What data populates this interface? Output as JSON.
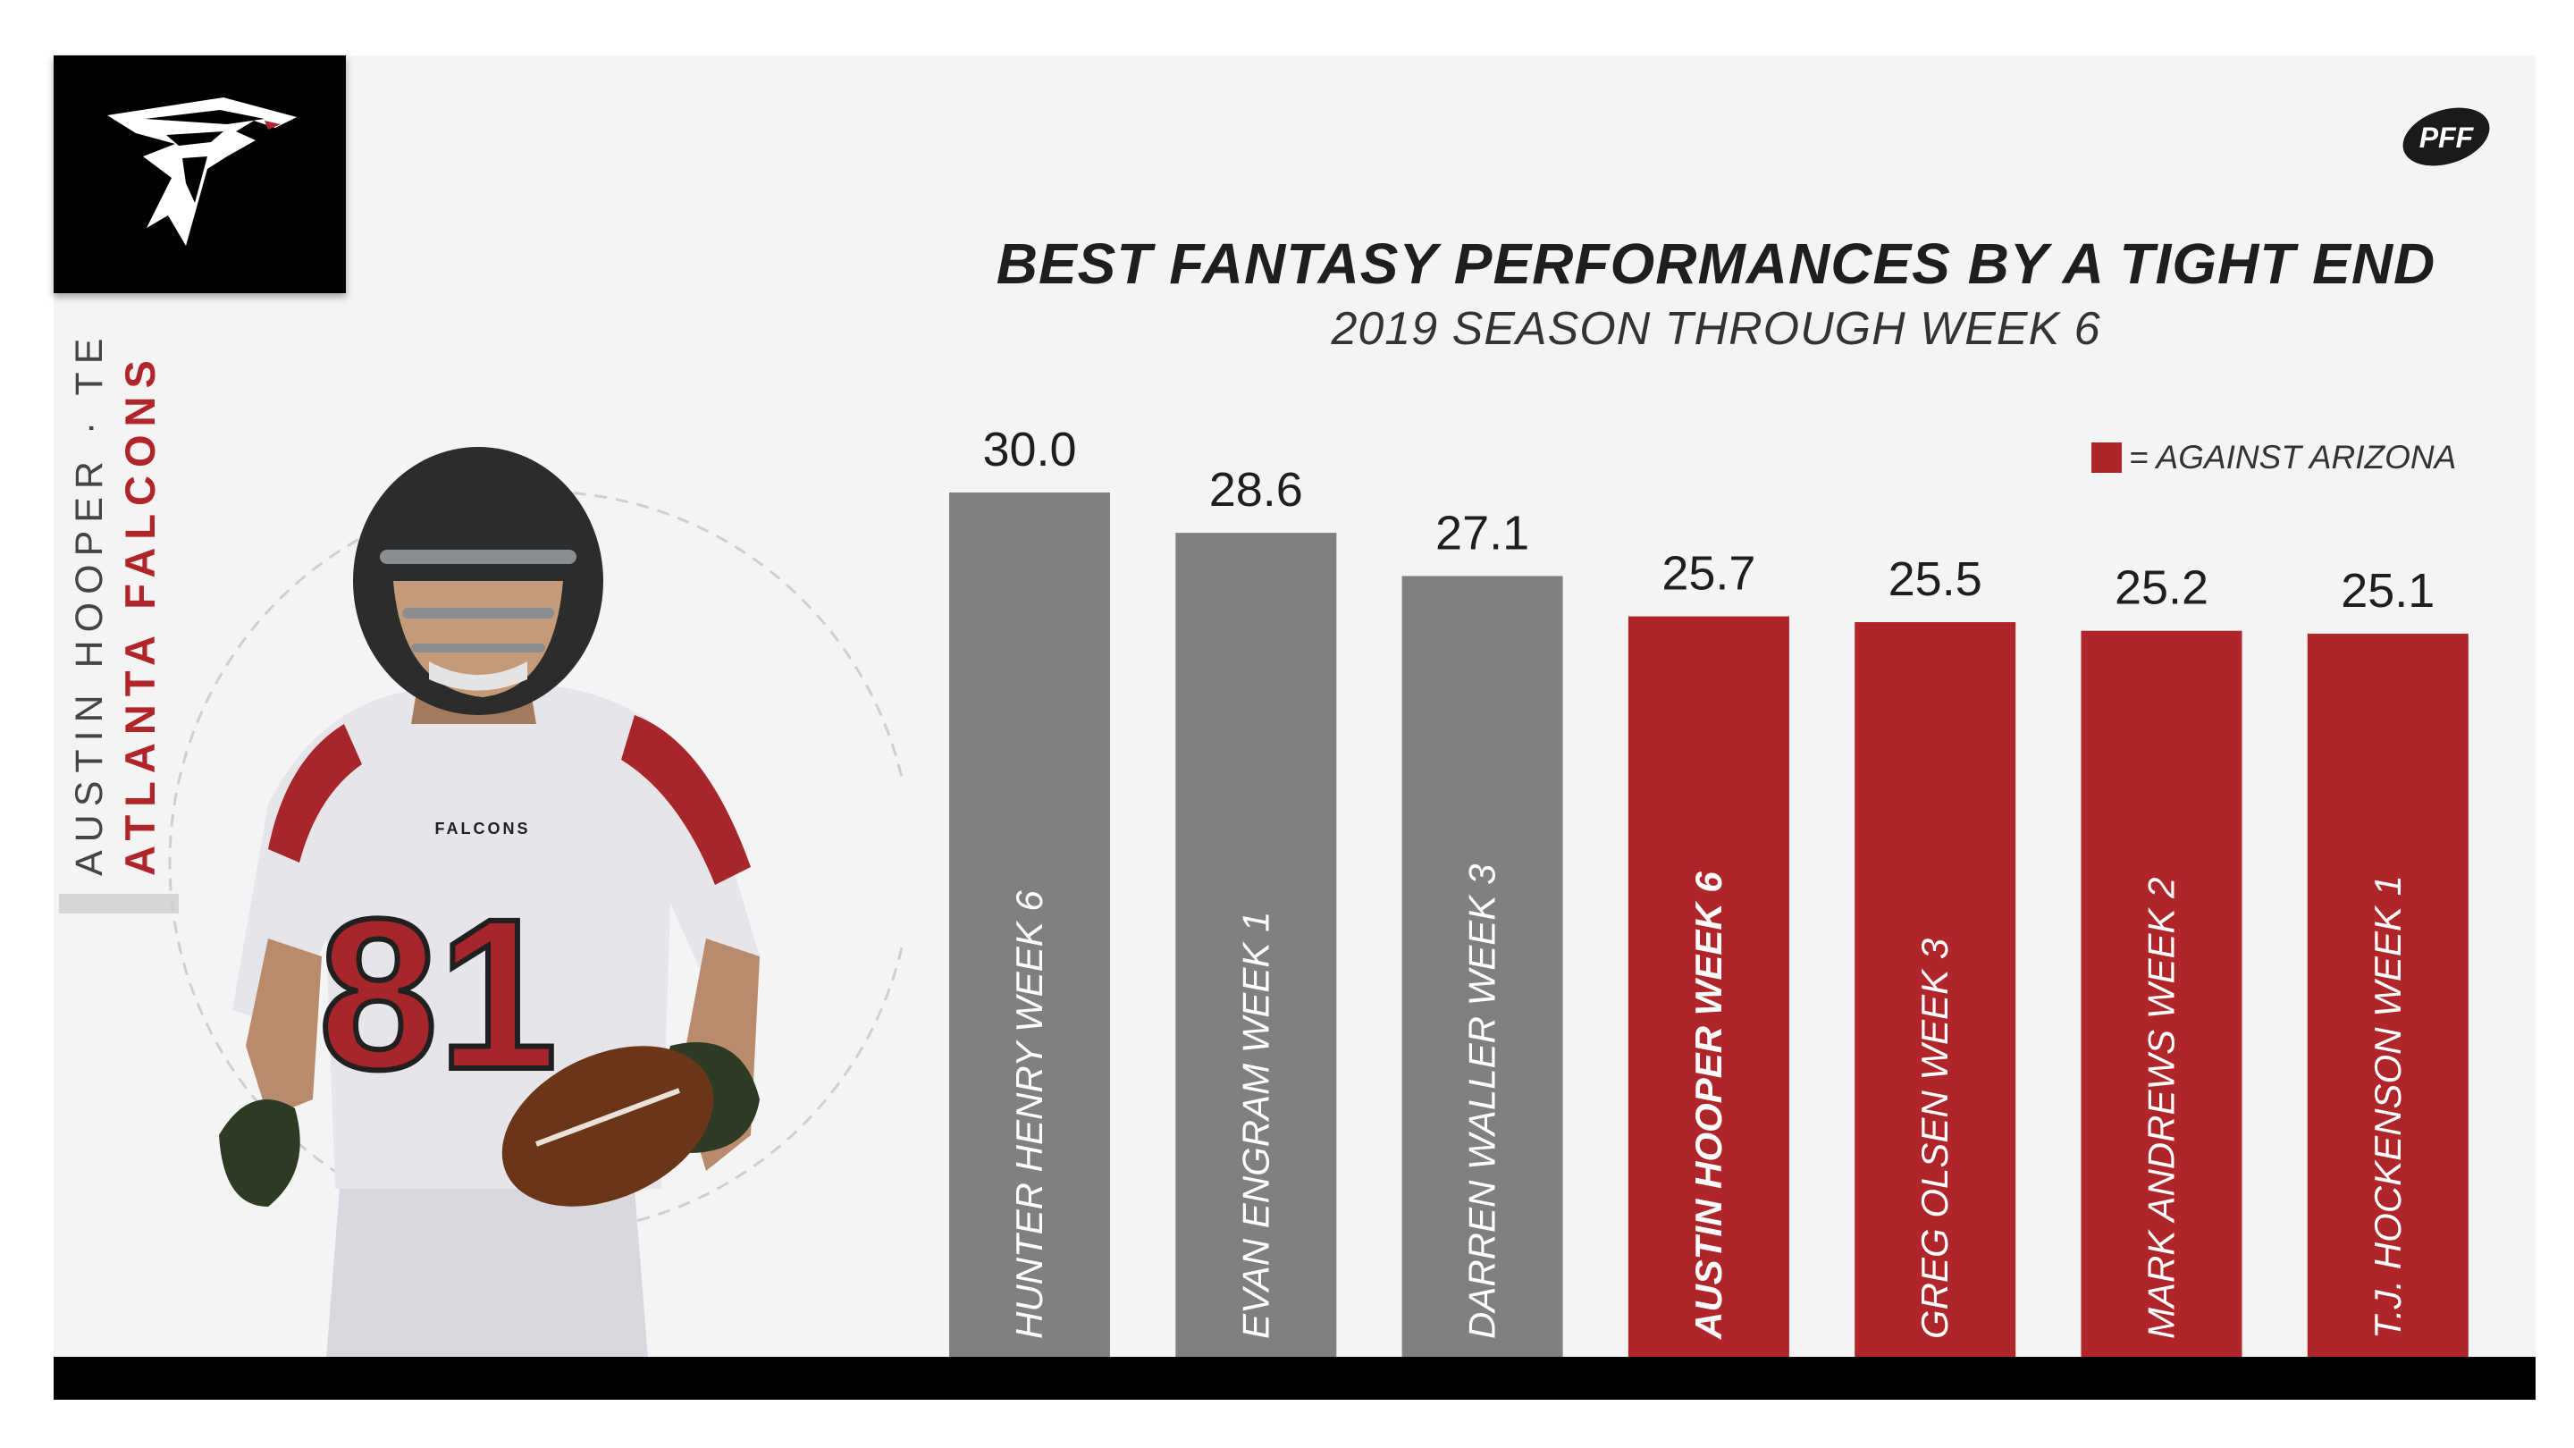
{
  "branding": {
    "team_logo_icon": "falcons-logo-icon",
    "publisher_logo_icon": "pff-logo-icon",
    "publisher_logo_text": "PFF"
  },
  "side_label": {
    "player": "AUSTIN HOOPER · TE",
    "team": "ATLANTA FALCONS"
  },
  "player_image": {
    "icon": "player-photo",
    "jersey_number": "81",
    "jersey_text": "FALCONS"
  },
  "colors": {
    "highlight": "#b0252a",
    "default_bar": "#808080",
    "title": "#1e1e1e",
    "background": "#f4f4f4"
  },
  "legend": {
    "swatch_color": "#b0252a",
    "label": "= AGAINST ARIZONA"
  },
  "chart_data": {
    "type": "bar",
    "title": "BEST FANTASY PERFORMANCES BY A TIGHT END",
    "subtitle": "2019 SEASON THROUGH WEEK 6",
    "categories": [
      "HUNTER HENRY WEEK 6",
      "EVAN ENGRAM WEEK 1",
      "DARREN WALLER WEEK 3",
      "AUSTIN HOOPER WEEK 6",
      "GREG OLSEN WEEK 3",
      "MARK ANDREWS WEEK 2",
      "T.J. HOCKENSON WEEK 1"
    ],
    "values": [
      30.0,
      28.6,
      27.1,
      25.7,
      25.5,
      25.2,
      25.1
    ],
    "value_labels": [
      "30.0",
      "28.6",
      "27.1",
      "25.7",
      "25.5",
      "25.2",
      "25.1"
    ],
    "against_arizona": [
      false,
      false,
      false,
      true,
      true,
      true,
      true
    ],
    "emphasized": [
      false,
      false,
      false,
      true,
      false,
      false,
      false
    ],
    "xlabel": "",
    "ylabel": "",
    "legend_placement": "top-right",
    "grid": false
  }
}
